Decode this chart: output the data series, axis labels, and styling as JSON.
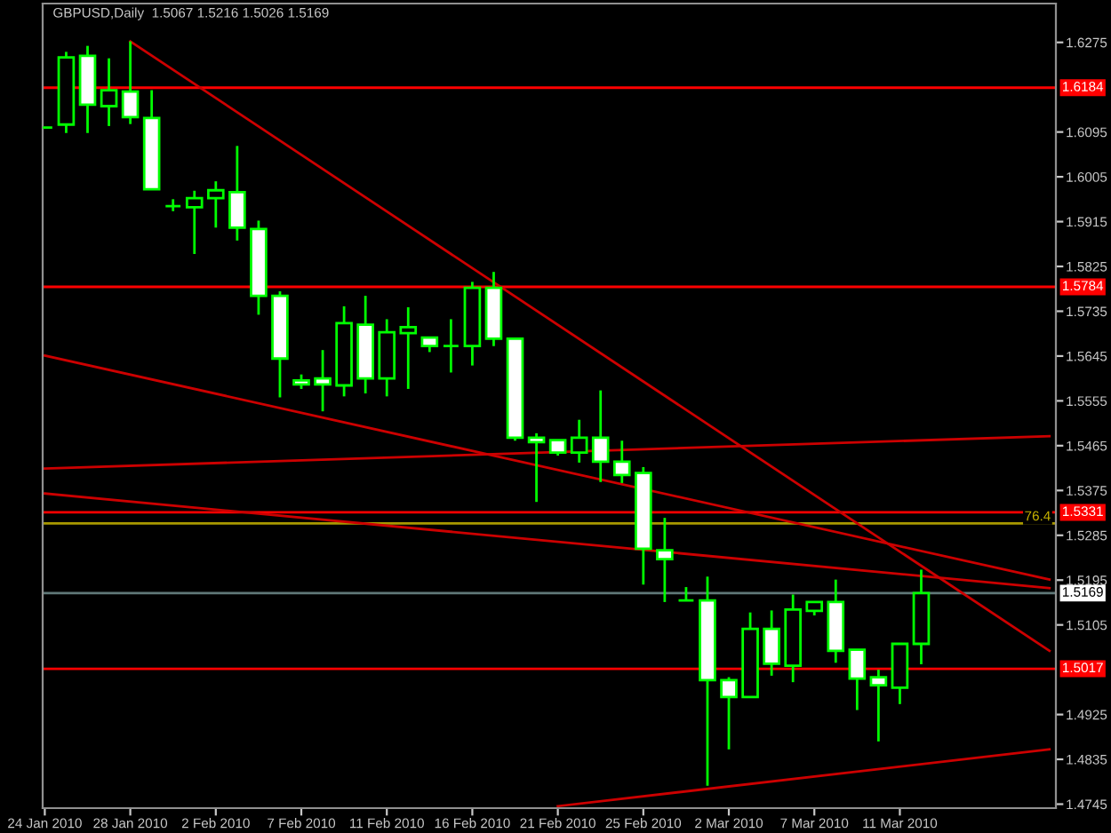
{
  "chart_data": {
    "type": "candlestick",
    "title": "GBPUSD,Daily  1.5067 1.5216 1.5026 1.5169",
    "color": "#00ff00",
    "categories": [
      "24 Jan 2010",
      null,
      null,
      null,
      "28 Jan 2010",
      null,
      null,
      null,
      "2 Feb 2010",
      null,
      null,
      null,
      "7 Feb 2010",
      null,
      null,
      null,
      "11 Feb 2010",
      null,
      null,
      null,
      "16 Feb 2010",
      null,
      null,
      null,
      "21 Feb 2010",
      null,
      null,
      null,
      "25 Feb 2010",
      null,
      null,
      null,
      "2 Mar 2010",
      null,
      null,
      null,
      "7 Mar 2010",
      null,
      null,
      null,
      "11 Mar 2010",
      null,
      null,
      null,
      null,
      null,
      null,
      null
    ],
    "ohlc": [
      [
        1.6104,
        1.6104,
        1.6104,
        1.6104
      ],
      [
        1.611,
        1.6256,
        1.6093,
        1.6245
      ],
      [
        1.6248,
        1.6268,
        1.6093,
        1.615
      ],
      [
        1.6147,
        1.6243,
        1.6107,
        1.6179
      ],
      [
        1.6176,
        1.6277,
        1.6111,
        1.6125
      ],
      [
        1.6123,
        1.6179,
        1.598,
        1.598
      ],
      [
        1.5946,
        1.596,
        1.5936,
        1.5946
      ],
      [
        1.5944,
        1.5977,
        1.585,
        1.5962
      ],
      [
        1.5962,
        1.5996,
        1.5903,
        1.5978
      ],
      [
        1.5974,
        1.6067,
        1.5877,
        1.5903
      ],
      [
        1.59,
        1.5917,
        1.5728,
        1.5766
      ],
      [
        1.5766,
        1.5775,
        1.5562,
        1.564
      ],
      [
        1.5596,
        1.5608,
        1.5579,
        1.5588
      ],
      [
        1.56,
        1.5657,
        1.5534,
        1.5588
      ],
      [
        1.5586,
        1.5745,
        1.5564,
        1.5711
      ],
      [
        1.5708,
        1.5766,
        1.557,
        1.56
      ],
      [
        1.56,
        1.5719,
        1.5564,
        1.5693
      ],
      [
        1.5691,
        1.5743,
        1.5579,
        1.5703
      ],
      [
        1.5682,
        1.5682,
        1.5653,
        1.5665
      ],
      [
        1.5665,
        1.5719,
        1.5612,
        1.5665
      ],
      [
        1.5665,
        1.5794,
        1.5626,
        1.5782
      ],
      [
        1.5782,
        1.5814,
        1.5665,
        1.568
      ],
      [
        1.568,
        1.568,
        1.5475,
        1.5481
      ],
      [
        1.5481,
        1.549,
        1.5352,
        1.5472
      ],
      [
        1.5476,
        1.5476,
        1.5445,
        1.5451
      ],
      [
        1.5451,
        1.5517,
        1.5431,
        1.5481
      ],
      [
        1.5481,
        1.5576,
        1.5392,
        1.5433
      ],
      [
        1.5433,
        1.5475,
        1.539,
        1.5406
      ],
      [
        1.541,
        1.5422,
        1.5186,
        1.5258
      ],
      [
        1.5255,
        1.532,
        1.5151,
        1.5237
      ],
      [
        1.5154,
        1.5181,
        1.5154,
        1.5154
      ],
      [
        1.5154,
        1.5202,
        1.4782,
        1.4994
      ],
      [
        1.4994,
        1.5,
        1.4855,
        1.496
      ],
      [
        1.496,
        1.513,
        1.496,
        1.5097
      ],
      [
        1.5097,
        1.5134,
        1.5003,
        1.5027
      ],
      [
        1.5023,
        1.5166,
        1.499,
        1.5136
      ],
      [
        1.5133,
        1.5151,
        1.5124,
        1.5151
      ],
      [
        1.5151,
        1.5196,
        1.5029,
        1.5053
      ],
      [
        1.5055,
        1.5055,
        1.4934,
        1.4997
      ],
      [
        1.5,
        1.5015,
        1.4871,
        1.4984
      ],
      [
        1.4979,
        1.5067,
        1.4946,
        1.5067
      ],
      [
        1.5067,
        1.5216,
        1.5026,
        1.5169
      ],
      null,
      null,
      null,
      null,
      null,
      null
    ],
    "series": [
      {
        "type": "line",
        "color": "#cc0000",
        "values": [
          null,
          null,
          null,
          null,
          1.6277,
          null,
          null,
          null,
          null,
          null,
          null,
          null,
          null,
          null,
          null,
          null,
          null,
          null,
          null,
          null,
          null,
          null,
          null,
          null,
          null,
          null,
          null,
          null,
          null,
          null,
          null,
          null,
          null,
          null,
          null,
          null,
          null,
          null,
          null,
          null,
          null,
          null,
          null,
          null,
          null,
          null,
          null,
          1.5053
        ]
      },
      {
        "type": "line",
        "color": "#cc0000",
        "values": [
          1.5646,
          null,
          null,
          null,
          null,
          null,
          null,
          null,
          null,
          null,
          null,
          null,
          null,
          null,
          null,
          null,
          null,
          null,
          null,
          null,
          null,
          null,
          null,
          null,
          null,
          null,
          null,
          null,
          null,
          null,
          null,
          null,
          null,
          null,
          null,
          null,
          null,
          null,
          null,
          null,
          null,
          null,
          null,
          null,
          null,
          null,
          null,
          1.5196
        ]
      },
      {
        "type": "line",
        "color": "#cc0000",
        "values": [
          1.5419,
          null,
          null,
          null,
          null,
          null,
          null,
          null,
          null,
          null,
          null,
          null,
          null,
          null,
          null,
          null,
          null,
          null,
          null,
          null,
          null,
          null,
          null,
          null,
          null,
          null,
          null,
          null,
          null,
          null,
          null,
          null,
          null,
          null,
          null,
          null,
          null,
          null,
          null,
          null,
          null,
          null,
          null,
          null,
          null,
          null,
          null,
          1.5484
        ]
      },
      {
        "type": "line",
        "color": "#cc0000",
        "values": [
          1.5369,
          null,
          null,
          null,
          null,
          null,
          null,
          null,
          null,
          null,
          null,
          null,
          null,
          null,
          null,
          null,
          null,
          null,
          null,
          null,
          null,
          null,
          null,
          null,
          null,
          null,
          null,
          null,
          null,
          null,
          null,
          null,
          null,
          null,
          null,
          null,
          null,
          null,
          null,
          null,
          null,
          null,
          null,
          null,
          null,
          null,
          null,
          1.5179
        ]
      },
      {
        "type": "line",
        "color": "#cc0000",
        "values": [
          null,
          null,
          null,
          null,
          null,
          null,
          null,
          null,
          null,
          null,
          null,
          null,
          null,
          null,
          null,
          null,
          null,
          null,
          null,
          null,
          null,
          null,
          null,
          null,
          1.4741,
          null,
          null,
          null,
          null,
          null,
          null,
          null,
          null,
          null,
          null,
          null,
          null,
          null,
          null,
          null,
          null,
          null,
          null,
          null,
          null,
          null,
          null,
          1.4855
        ]
      }
    ],
    "ref_lines": [
      {
        "axis": "y",
        "value": 1.6184,
        "label": "1.6184",
        "color": "#ff0000"
      },
      {
        "axis": "y",
        "value": 1.5784,
        "label": "1.5784",
        "color": "#ff0000"
      },
      {
        "axis": "y",
        "value": 1.5331,
        "label": "1.5331",
        "color": "#ff0000"
      },
      {
        "axis": "y",
        "value": 1.5309,
        "color": "#a89800"
      },
      {
        "axis": "y",
        "value": 1.5169,
        "label": "1.5169",
        "color": "#607878"
      },
      {
        "axis": "y",
        "value": 1.5017,
        "label": "1.5017",
        "color": "#ff0000"
      }
    ],
    "annotations": [
      {
        "text": "76.4",
        "y": 1.5309
      }
    ],
    "ylim": [
      1.4737,
      1.6353
    ],
    "yticks": [
      1.6275,
      1.6095,
      1.6005,
      1.5915,
      1.5825,
      1.5735,
      1.5645,
      1.5555,
      1.5465,
      1.5375,
      1.5285,
      1.5195,
      1.5105,
      1.4925,
      1.4835,
      1.4745
    ],
    "grid": false,
    "legend": false
  }
}
